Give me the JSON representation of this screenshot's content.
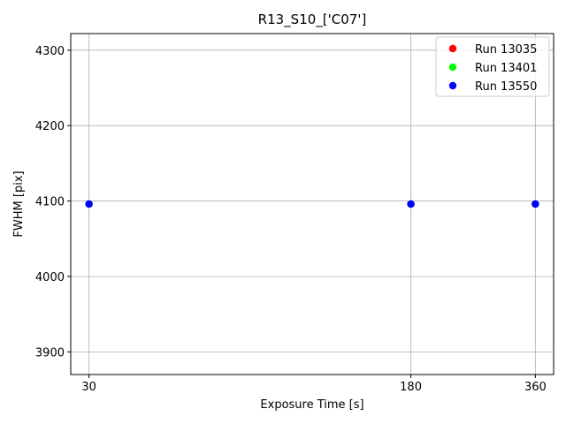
{
  "chart_data": {
    "type": "scatter",
    "title": "R13_S10_['C07']",
    "xlabel": "Exposure Time [s]",
    "ylabel": "FWHM [pix]",
    "x_scale": "log",
    "x_ticks": [
      30,
      180,
      360
    ],
    "xlim": [
      27.1,
      398.5
    ],
    "y_ticks": [
      3900,
      4000,
      4100,
      4200,
      4300
    ],
    "ylim": [
      3870,
      4322
    ],
    "grid": true,
    "legend_position": "top-right",
    "series": [
      {
        "name": "Run 13035",
        "color": "#ff0000",
        "x": [
          30,
          180,
          360
        ],
        "y": [
          4096,
          4096,
          4096
        ]
      },
      {
        "name": "Run 13401",
        "color": "#00ff00",
        "x": [
          30,
          180,
          360
        ],
        "y": [
          4096,
          4096,
          4096
        ]
      },
      {
        "name": "Run 13550",
        "color": "#0000ff",
        "x": [
          30,
          180,
          360
        ],
        "y": [
          4096,
          4096,
          4096
        ]
      }
    ]
  }
}
